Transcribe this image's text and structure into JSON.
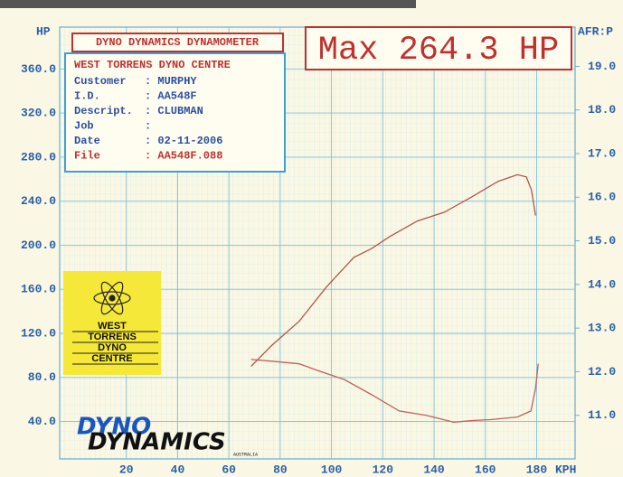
{
  "chart_data": {
    "type": "line",
    "title": "DYNO DYNAMICS DYNAMOMETER",
    "subtitle": "Max 264.3 HP",
    "y_label": "HP",
    "y2_label": "AFR:P",
    "x_label": "KPH",
    "info_box": {
      "heading": "WEST TORRENS DYNO CENTRE",
      "rows": [
        [
          "Customer",
          ": MURPHY"
        ],
        [
          "I.D.",
          ": AA548F"
        ],
        [
          "Descript.",
          ": CLUBMAN"
        ],
        [
          "Job",
          ":"
        ],
        [
          "Date",
          ": 02-11-2006"
        ],
        [
          "File",
          ": AA548F.088"
        ]
      ]
    },
    "logo_text": [
      "WEST",
      "TORRENS",
      "DYNO",
      "CENTRE"
    ],
    "brand": [
      "DYNO",
      "DYNAMICS",
      "AUSTRALIA"
    ],
    "xlim": [
      -6,
      195
    ],
    "xticks": [
      20,
      40,
      60,
      80,
      100,
      120,
      140,
      160,
      180
    ],
    "ylim": [
      6,
      398
    ],
    "yticks": [
      {
        "value": 40,
        "label": "40.0"
      },
      {
        "value": 80,
        "label": "80.0"
      },
      {
        "value": 120,
        "label": "120.0"
      },
      {
        "value": 160,
        "label": "160.0"
      },
      {
        "value": 200,
        "label": "200.0"
      },
      {
        "value": 240,
        "label": "240.0"
      },
      {
        "value": 280,
        "label": "280.0"
      },
      {
        "value": 320,
        "label": "320.0"
      },
      {
        "value": 360,
        "label": "360.0"
      }
    ],
    "y2lim": [
      10,
      19.9
    ],
    "y2ticks": [
      {
        "value": 11,
        "label": "11.0"
      },
      {
        "value": 12,
        "label": "12.0"
      },
      {
        "value": 13,
        "label": "13.0"
      },
      {
        "value": 14,
        "label": "14.0"
      },
      {
        "value": 15,
        "label": "15.0"
      },
      {
        "value": 16,
        "label": "16.0"
      },
      {
        "value": 17,
        "label": "17.0"
      },
      {
        "value": 18,
        "label": "18.0"
      },
      {
        "value": 19,
        "label": "19.0"
      }
    ],
    "grid": true,
    "series": [
      {
        "color": "#b5534c",
        "x": [
          68.6,
          76.7,
          87.4,
          98,
          108.7,
          115.7,
          122.8,
          133.5,
          144,
          154.8,
          165,
          172.5,
          176,
          178,
          179.6
        ],
        "values": [
          90,
          109,
          131,
          162,
          189,
          197,
          208,
          222,
          230,
          244,
          258,
          264,
          262,
          250,
          227
        ]
      },
      {
        "color": "#c0605e",
        "axis": "y2",
        "x": [
          68.6,
          76.7,
          87.4,
          94.5,
          105,
          115.7,
          126.4,
          137,
          147.7,
          154.8,
          162,
          172.5,
          177.8,
          179.6,
          180.6
        ],
        "values": [
          12.28,
          12.24,
          12.18,
          12.03,
          11.82,
          11.47,
          11.1,
          11.0,
          10.84,
          10.88,
          10.9,
          10.96,
          11.1,
          11.62,
          12.18
        ]
      }
    ]
  }
}
